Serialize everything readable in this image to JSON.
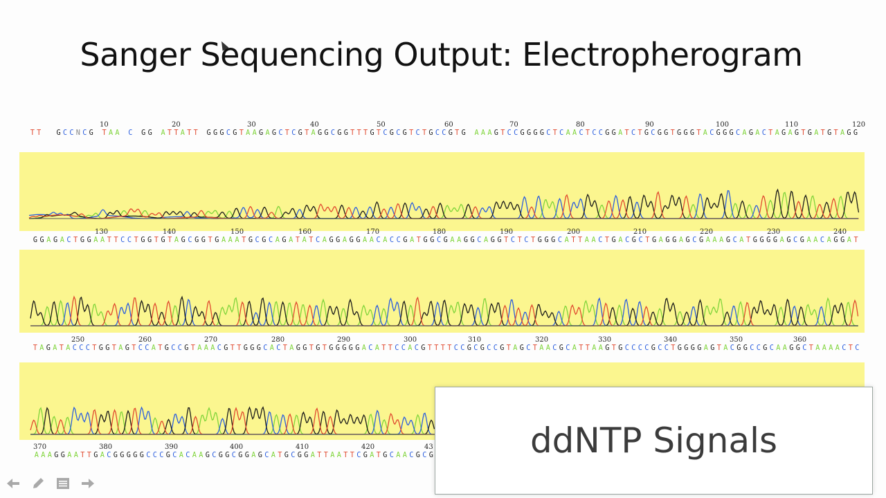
{
  "slide": {
    "title": "Sanger Sequencing Output: Electropherogram",
    "callout": "ddNTP Signals"
  },
  "colors": {
    "A": "#7fd43a",
    "C": "#2a5dde",
    "G": "#1a1a1a",
    "T": "#e0492f",
    "panel": "#fbf68f"
  },
  "rows": [
    {
      "positions": [
        "10",
        "20",
        "30",
        "40",
        "50",
        "60",
        "70",
        "80",
        "90",
        "100",
        "110",
        "120"
      ],
      "sequence": "TT  GCCNCG TAA C GG ATTATT GGGCGTAAGAGCTCGTAGGCGGTTTGTCGCGTCTGCCGTG AAAGTCCGGGGCTCAACTCCGGATCTGCGGTGGGTACGGGCAGACTAGAGTGATGTAGG"
    },
    {
      "positions": [
        "130",
        "140",
        "150",
        "160",
        "170",
        "180",
        "190",
        "200",
        "210",
        "220",
        "230",
        "240"
      ],
      "sequence": "GGAGACTGGAATTCCTGGTGTAGCGGTGAAATGCGCAGATATCAGGAGGAACACCGATGGCGAAGGCAGGTCTCTGGGCATTAACTGACGCTGAGGAGCGAAAGCATGGGGAGCGAACAGGAT"
    },
    {
      "positions": [
        "250",
        "260",
        "270",
        "280",
        "290",
        "300",
        "310",
        "320",
        "330",
        "340",
        "350",
        "360"
      ],
      "sequence": "TAGATACCCTGGTAGTCCATGCCGTAAACGTTGGGCACTAGGTGTGGGGGACATTCCACGTTTTCCGCGCCGTAGCTAACGCATTAAGTGCCCCGCCTGGGGAGTACGGCCGCAAGGCTAAAACTC"
    },
    {
      "positions": [
        "370",
        "380",
        "390",
        "400",
        "410",
        "420",
        "43"
      ],
      "sequence": "AAAGGAATTGACGGGGGCCCGCACAAGCGGCGGAGCATGCGGATTAATTCGATGCAACGCG"
    }
  ],
  "nav": {
    "icons": [
      "arrow-left-icon",
      "pen-icon",
      "menu-icon",
      "arrow-right-icon"
    ]
  }
}
